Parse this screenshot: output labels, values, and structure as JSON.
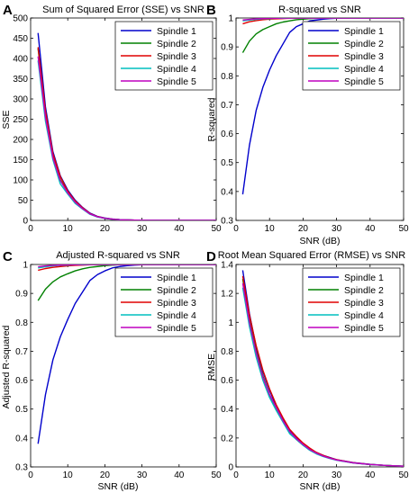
{
  "chart_data": [
    {
      "panel": "A",
      "type": "line",
      "title": "Sum of Squared Error (SSE) vs SNR",
      "xlabel": "",
      "ylabel": "SSE",
      "xlim": [
        0,
        50
      ],
      "ylim": [
        0,
        500
      ],
      "xticks": [
        0,
        10,
        20,
        30,
        40,
        50
      ],
      "yticks": [
        0,
        50,
        100,
        150,
        200,
        250,
        300,
        350,
        400,
        450,
        500
      ],
      "legend": "top-right",
      "x": [
        2,
        4,
        6,
        8,
        10,
        12,
        14,
        16,
        18,
        20,
        22,
        24,
        26,
        28,
        30,
        35,
        40,
        45,
        50
      ],
      "series": [
        {
          "name": "Spindle 1",
          "color": "#0000cc",
          "values": [
            463,
            280,
            170,
            110,
            75,
            50,
            32,
            18,
            10,
            6,
            3.5,
            2,
            1.3,
            0.8,
            0.5,
            0.2,
            0.1,
            0.05,
            0.02
          ]
        },
        {
          "name": "Spindle 2",
          "color": "#008000",
          "values": [
            425,
            265,
            160,
            100,
            70,
            46,
            30,
            16,
            9,
            5,
            3,
            1.8,
            1.1,
            0.7,
            0.4,
            0.2,
            0.1,
            0.05,
            0.02
          ]
        },
        {
          "name": "Spindle 3",
          "color": "#e00000",
          "values": [
            428,
            270,
            165,
            108,
            72,
            48,
            31,
            17,
            9.5,
            5.5,
            3.2,
            1.9,
            1.2,
            0.8,
            0.5,
            0.2,
            0.1,
            0.05,
            0.02
          ]
        },
        {
          "name": "Spindle 4",
          "color": "#00bfbf",
          "values": [
            395,
            245,
            150,
            90,
            65,
            42,
            28,
            15,
            8.5,
            5,
            3,
            1.7,
            1.1,
            0.7,
            0.4,
            0.2,
            0.1,
            0.05,
            0.02
          ]
        },
        {
          "name": "Spindle 5",
          "color": "#bf00bf",
          "values": [
            405,
            255,
            155,
            98,
            68,
            45,
            29,
            16,
            9,
            5.2,
            3.1,
            1.8,
            1.1,
            0.7,
            0.4,
            0.2,
            0.1,
            0.05,
            0.02
          ]
        }
      ]
    },
    {
      "panel": "B",
      "type": "line",
      "title": "R-squared vs SNR",
      "xlabel": "SNR (dB)",
      "ylabel": "R-squared",
      "xlim": [
        0,
        50
      ],
      "ylim": [
        0.3,
        1
      ],
      "xticks": [
        0,
        10,
        20,
        30,
        40,
        50
      ],
      "yticks": [
        0.3,
        0.4,
        0.5,
        0.6,
        0.7,
        0.8,
        0.9,
        1
      ],
      "legend": "top-right",
      "x": [
        2,
        4,
        6,
        8,
        10,
        12,
        14,
        16,
        18,
        20,
        22,
        24,
        26,
        28,
        30,
        35,
        40,
        45,
        50
      ],
      "series": [
        {
          "name": "Spindle 1",
          "color": "#0000cc",
          "values": [
            0.39,
            0.56,
            0.68,
            0.76,
            0.82,
            0.87,
            0.91,
            0.95,
            0.97,
            0.98,
            0.99,
            0.993,
            0.996,
            0.998,
            0.999,
            1,
            1,
            1,
            1
          ]
        },
        {
          "name": "Spindle 2",
          "color": "#008000",
          "values": [
            0.88,
            0.92,
            0.945,
            0.96,
            0.97,
            0.98,
            0.986,
            0.99,
            0.994,
            0.996,
            0.998,
            0.999,
            1,
            1,
            1,
            1,
            1,
            1,
            1
          ]
        },
        {
          "name": "Spindle 3",
          "color": "#e00000",
          "values": [
            0.98,
            0.987,
            0.991,
            0.994,
            0.996,
            0.997,
            0.998,
            0.999,
            0.999,
            1,
            1,
            1,
            1,
            1,
            1,
            1,
            1,
            1,
            1
          ]
        },
        {
          "name": "Spindle 4",
          "color": "#00bfbf",
          "values": [
            0.99,
            0.993,
            0.995,
            0.997,
            0.998,
            0.999,
            0.999,
            1,
            1,
            1,
            1,
            1,
            1,
            1,
            1,
            1,
            1,
            1,
            1
          ]
        },
        {
          "name": "Spindle 5",
          "color": "#bf00bf",
          "values": [
            0.993,
            0.995,
            0.997,
            0.998,
            0.999,
            0.999,
            1,
            1,
            1,
            1,
            1,
            1,
            1,
            1,
            1,
            1,
            1,
            1,
            1
          ]
        }
      ]
    },
    {
      "panel": "C",
      "type": "line",
      "title": "Adjusted R-squared vs SNR",
      "xlabel": "SNR (dB)",
      "ylabel": "Adjusted R-squared",
      "xlim": [
        0,
        50
      ],
      "ylim": [
        0.3,
        1
      ],
      "xticks": [
        0,
        10,
        20,
        30,
        40,
        50
      ],
      "yticks": [
        0.3,
        0.4,
        0.5,
        0.6,
        0.7,
        0.8,
        0.9,
        1
      ],
      "legend": "top-right",
      "x": [
        2,
        4,
        6,
        8,
        10,
        12,
        14,
        16,
        18,
        20,
        22,
        24,
        26,
        28,
        30,
        35,
        40,
        45,
        50
      ],
      "series": [
        {
          "name": "Spindle 1",
          "color": "#0000cc",
          "values": [
            0.38,
            0.55,
            0.67,
            0.75,
            0.81,
            0.865,
            0.905,
            0.945,
            0.965,
            0.978,
            0.988,
            0.993,
            0.996,
            0.998,
            0.999,
            1,
            1,
            1,
            1
          ]
        },
        {
          "name": "Spindle 2",
          "color": "#008000",
          "values": [
            0.875,
            0.915,
            0.94,
            0.957,
            0.968,
            0.978,
            0.985,
            0.99,
            0.993,
            0.996,
            0.998,
            0.999,
            1,
            1,
            1,
            1,
            1,
            1,
            1
          ]
        },
        {
          "name": "Spindle 3",
          "color": "#e00000",
          "values": [
            0.98,
            0.986,
            0.99,
            0.993,
            0.995,
            0.997,
            0.998,
            0.999,
            0.999,
            1,
            1,
            1,
            1,
            1,
            1,
            1,
            1,
            1,
            1
          ]
        },
        {
          "name": "Spindle 4",
          "color": "#00bfbf",
          "values": [
            0.988,
            0.992,
            0.995,
            0.997,
            0.998,
            0.999,
            0.999,
            1,
            1,
            1,
            1,
            1,
            1,
            1,
            1,
            1,
            1,
            1,
            1
          ]
        },
        {
          "name": "Spindle 5",
          "color": "#bf00bf",
          "values": [
            0.992,
            0.995,
            0.997,
            0.998,
            0.999,
            0.999,
            1,
            1,
            1,
            1,
            1,
            1,
            1,
            1,
            1,
            1,
            1,
            1,
            1
          ]
        }
      ]
    },
    {
      "panel": "D",
      "type": "line",
      "title": "Root Mean Squared Error (RMSE) vs SNR",
      "xlabel": "SNR (dB)",
      "ylabel": "RMSE",
      "xlim": [
        0,
        50
      ],
      "ylim": [
        0,
        1.4
      ],
      "xticks": [
        0,
        10,
        20,
        30,
        40,
        50
      ],
      "yticks": [
        0,
        0.2,
        0.4,
        0.6,
        0.8,
        1,
        1.2,
        1.4
      ],
      "legend": "top-right",
      "x": [
        2,
        4,
        6,
        8,
        10,
        12,
        14,
        16,
        18,
        20,
        22,
        24,
        26,
        28,
        30,
        35,
        40,
        45,
        50
      ],
      "series": [
        {
          "name": "Spindle 1",
          "color": "#0000cc",
          "values": [
            1.36,
            1.06,
            0.83,
            0.66,
            0.53,
            0.42,
            0.33,
            0.25,
            0.2,
            0.16,
            0.125,
            0.1,
            0.08,
            0.065,
            0.05,
            0.03,
            0.018,
            0.01,
            0.005
          ]
        },
        {
          "name": "Spindle 2",
          "color": "#008000",
          "values": [
            1.3,
            1.02,
            0.8,
            0.63,
            0.5,
            0.4,
            0.32,
            0.24,
            0.19,
            0.15,
            0.12,
            0.095,
            0.075,
            0.06,
            0.048,
            0.028,
            0.017,
            0.01,
            0.005
          ]
        },
        {
          "name": "Spindle 3",
          "color": "#e00000",
          "values": [
            1.32,
            1.05,
            0.84,
            0.67,
            0.54,
            0.43,
            0.34,
            0.26,
            0.21,
            0.165,
            0.13,
            0.1,
            0.08,
            0.063,
            0.05,
            0.029,
            0.017,
            0.01,
            0.005
          ]
        },
        {
          "name": "Spindle 4",
          "color": "#00bfbf",
          "values": [
            1.24,
            0.97,
            0.76,
            0.6,
            0.48,
            0.39,
            0.31,
            0.23,
            0.19,
            0.15,
            0.115,
            0.09,
            0.072,
            0.058,
            0.046,
            0.027,
            0.016,
            0.01,
            0.005
          ]
        },
        {
          "name": "Spindle 5",
          "color": "#bf00bf",
          "values": [
            1.27,
            1.0,
            0.79,
            0.62,
            0.5,
            0.41,
            0.32,
            0.245,
            0.195,
            0.155,
            0.12,
            0.095,
            0.075,
            0.06,
            0.048,
            0.028,
            0.017,
            0.01,
            0.005
          ]
        }
      ]
    }
  ]
}
